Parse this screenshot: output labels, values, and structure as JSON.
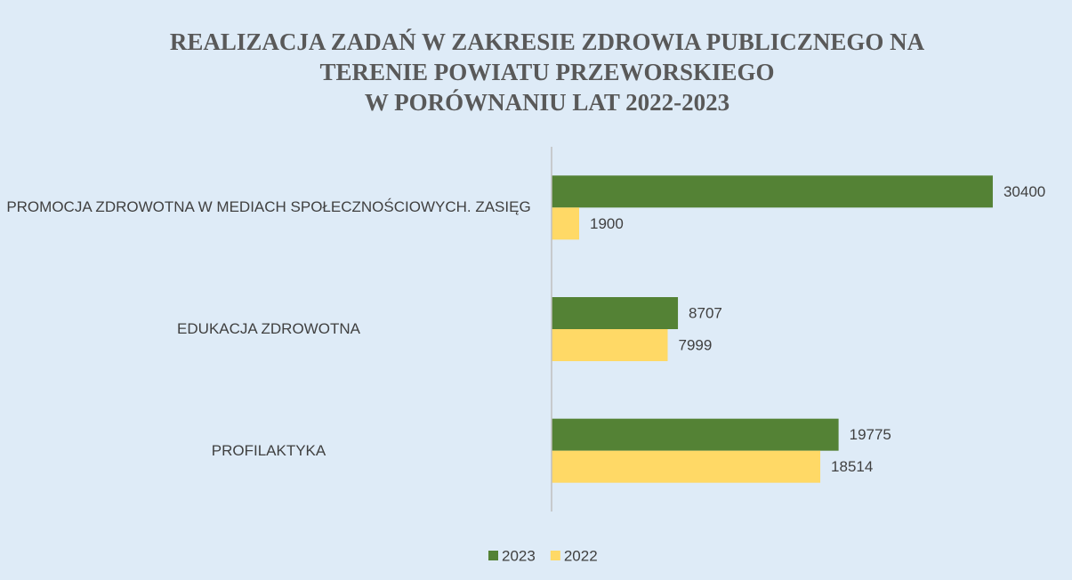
{
  "chart_data": {
    "type": "bar",
    "orientation": "horizontal",
    "title": [
      "REALIZACJA ZADAŃ W ZAKRESIE ZDROWIA PUBLICZNEGO NA",
      "TERENIE POWIATU PRZEWORSKIEGO",
      "W PORÓWNANIU LAT 2022-2023"
    ],
    "categories": [
      "PROMOCJA ZDROWOTNA W MEDIACH SPOŁECZNOŚCIOWYCH. ZASIĘG",
      "EDUKACJA ZDROWOTNA",
      "PROFILAKTYKA"
    ],
    "series": [
      {
        "name": "2023",
        "color": "#548235",
        "values": [
          30400,
          8707,
          19775
        ]
      },
      {
        "name": "2022",
        "color": "#ffd966",
        "values": [
          1900,
          7999,
          18514
        ]
      }
    ],
    "xlim": [
      0,
      35000
    ],
    "legend": "bottom"
  }
}
